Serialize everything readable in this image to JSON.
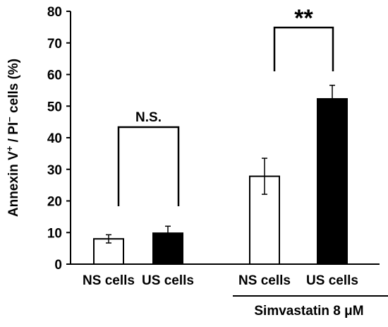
{
  "chart_data": {
    "type": "bar",
    "ylabel": "Annexin V+/PI− cells (%)",
    "ylabel_parts": {
      "main": "Annexin V",
      "sup1": "+",
      "mid": " / PI",
      "sup2": "−",
      "end": " cells (%)"
    },
    "ylim": [
      0,
      80
    ],
    "yticks": [
      0,
      10,
      20,
      30,
      40,
      50,
      60,
      70,
      80
    ],
    "bars": [
      {
        "label": "NS cells",
        "value": 8,
        "error": 1.3,
        "fill": "#ffffff"
      },
      {
        "label": "US cells",
        "value": 9.8,
        "error": 2.2,
        "fill": "#000000"
      },
      {
        "label": "NS cells",
        "value": 27.8,
        "error": 5.7,
        "fill": "#ffffff"
      },
      {
        "label": "US cells",
        "value": 52.3,
        "error": 4.3,
        "fill": "#000000"
      }
    ],
    "comparisons": [
      {
        "bars": [
          0,
          1
        ],
        "label": "N.S."
      },
      {
        "bars": [
          2,
          3
        ],
        "label": "**"
      }
    ],
    "treatment": {
      "label": "Simvastatin 8 μM",
      "bars": [
        2,
        3
      ]
    },
    "grid": false,
    "legend": "none"
  }
}
